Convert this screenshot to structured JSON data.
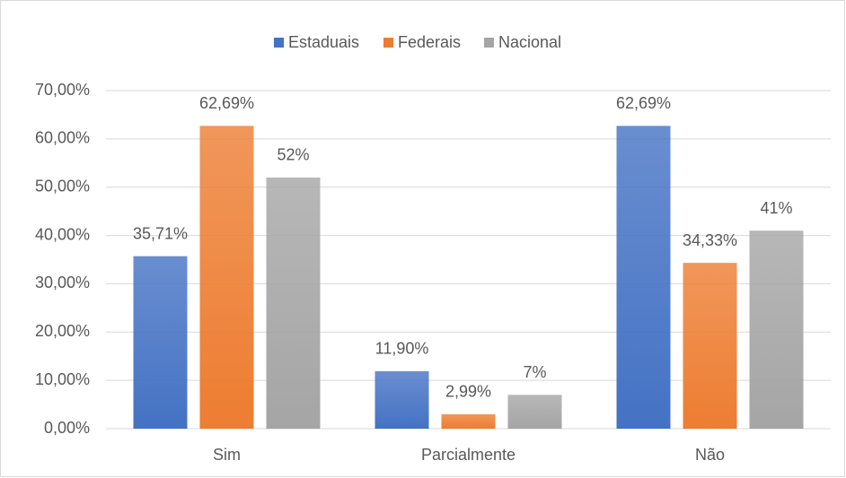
{
  "chart_data": {
    "type": "bar",
    "categories": [
      "Sim",
      "Parcialmente",
      "Não"
    ],
    "series": [
      {
        "name": "Estaduais",
        "color": "#4472c4",
        "values": [
          35.71,
          11.9,
          62.69
        ],
        "value_labels": [
          "35,71%",
          "11,90%",
          "62,69%"
        ]
      },
      {
        "name": "Federais",
        "color": "#ed7d31",
        "values": [
          62.69,
          2.99,
          34.33
        ],
        "value_labels": [
          "62,69%",
          "2,99%",
          "34,33%"
        ]
      },
      {
        "name": "Nacional",
        "color": "#a5a5a5",
        "values": [
          52,
          7,
          41
        ],
        "value_labels": [
          "52%",
          "7%",
          "41%"
        ]
      }
    ],
    "ylim": [
      0,
      70
    ],
    "yticks": [
      {
        "value": 0,
        "label": "0,00%"
      },
      {
        "value": 10,
        "label": "10,00%"
      },
      {
        "value": 20,
        "label": "20,00%"
      },
      {
        "value": 30,
        "label": "30,00%"
      },
      {
        "value": 40,
        "label": "40,00%"
      },
      {
        "value": 50,
        "label": "50,00%"
      },
      {
        "value": 60,
        "label": "60,00%"
      },
      {
        "value": 70,
        "label": "70,00%"
      }
    ],
    "grid": true,
    "legend": "top"
  }
}
